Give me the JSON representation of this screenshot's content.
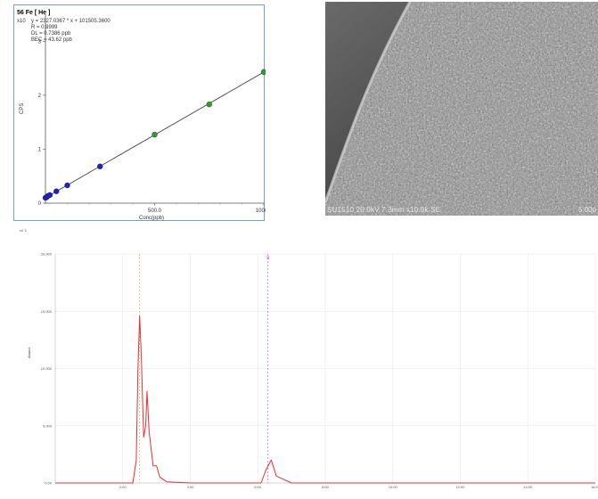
{
  "chart_data": [
    {
      "type": "scatter",
      "title": "56 Fe [ He ]",
      "equation": "y = 2327.0367 * x + 101505.3600",
      "r_value": "R = 0.9999",
      "dl": "DL = 0.7386 ppb",
      "bec": "BEC = 43.62 ppb",
      "y_multiplier": "x10",
      "xlabel": "Conc(ppb)",
      "ylabel": "CPS",
      "x_ticks": [
        "500.0",
        "1000.0"
      ],
      "y_ticks": [
        "0",
        "1",
        "2",
        "3"
      ],
      "xlim": [
        0,
        1000
      ],
      "ylim": [
        0,
        3.5
      ],
      "grid": false,
      "line": {
        "slope": 0.002327,
        "intercept": 0.1015
      },
      "series": [
        {
          "color": "#1f1fd0",
          "x": [
            0,
            5,
            10,
            20,
            50,
            100,
            250
          ],
          "y": [
            0.1,
            0.11,
            0.13,
            0.15,
            0.22,
            0.33,
            0.68
          ]
        },
        {
          "color": "#2aa02a",
          "x": [
            500,
            750,
            1000
          ],
          "y": [
            1.27,
            1.83,
            2.43
          ]
        }
      ]
    },
    {
      "type": "line",
      "title": "",
      "ylabel": "Abund",
      "y_corner": "ml 3",
      "y_ticks": [
        "20,000",
        "15,000",
        "10,000",
        "5,000",
        "0.00"
      ],
      "x_ticks": [
        "2:00",
        "4:00",
        "6:00",
        "8:00",
        "10:00",
        "12:00",
        "14:00",
        "16:00"
      ],
      "xlim": [
        0,
        16
      ],
      "ylim": [
        0,
        20000
      ],
      "grid": true,
      "markers": [
        {
          "label": "I",
          "x": 2.5,
          "color": "#e8a040"
        },
        {
          "label": "II",
          "x": 6.3,
          "color": "#cc33cc"
        }
      ],
      "series": [
        {
          "color": "#e83030",
          "x": [
            0.0,
            2.0,
            2.3,
            2.4,
            2.45,
            2.5,
            2.55,
            2.62,
            2.68,
            2.72,
            2.78,
            2.82,
            2.9,
            3.0,
            3.1,
            3.3,
            4.0,
            5.5,
            6.1,
            6.25,
            6.4,
            6.55,
            7.0,
            9.0,
            12.0,
            16.0
          ],
          "y": [
            0,
            0,
            0,
            2000,
            10000,
            14600,
            11000,
            4000,
            5000,
            8000,
            4500,
            3500,
            1500,
            1500,
            500,
            100,
            0,
            0,
            0,
            1200,
            2000,
            600,
            0,
            0,
            0,
            0
          ]
        }
      ]
    }
  ],
  "sem": {
    "caption": "SU1510 20.0kV 7.3mm x10.0k SE",
    "scale_label": "5.00u"
  }
}
